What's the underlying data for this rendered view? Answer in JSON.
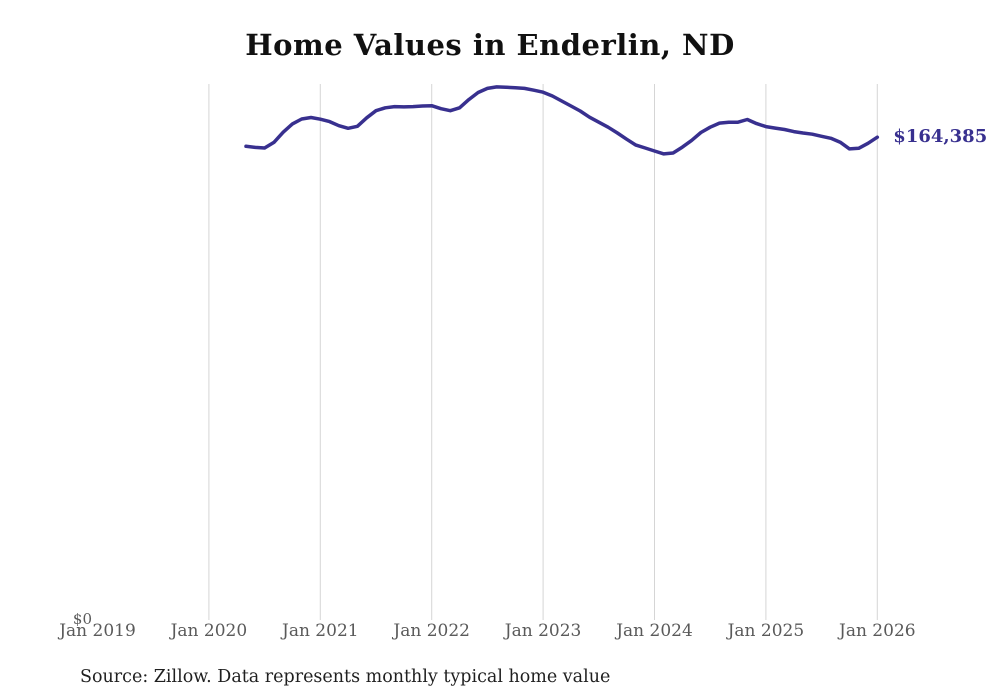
{
  "chart": {
    "title": "Home Values in Enderlin, ND",
    "y_zero_label": "$0",
    "end_label": "$164,385",
    "source": "Source: Zillow. Data represents monthly typical home value",
    "colors": {
      "line": "#38308f",
      "gridline": "#d5d5d5",
      "tick_label": "#5a5a5a",
      "title": "#111111",
      "source_text": "#1f1f1f",
      "background": "#ffffff"
    }
  },
  "chart_data": {
    "type": "line",
    "title": "Home Values in Enderlin, ND",
    "xlabel": "",
    "ylabel": "",
    "ylim": [
      0,
      182500
    ],
    "grid": "vertical-only",
    "legend": "none",
    "annotation_last_value": "$164,385",
    "x_ticks": [
      {
        "label": "Jan 2019",
        "month": "2019-01",
        "gridline": false
      },
      {
        "label": "Jan 2020",
        "month": "2020-01",
        "gridline": true
      },
      {
        "label": "Jan 2021",
        "month": "2021-01",
        "gridline": true
      },
      {
        "label": "Jan 2022",
        "month": "2022-01",
        "gridline": true
      },
      {
        "label": "Jan 2023",
        "month": "2023-01",
        "gridline": true
      },
      {
        "label": "Jan 2024",
        "month": "2024-01",
        "gridline": true
      },
      {
        "label": "Jan 2025",
        "month": "2025-01",
        "gridline": true
      },
      {
        "label": "Jan 2026",
        "month": "2026-01",
        "gridline": true
      }
    ],
    "series": [
      {
        "name": "Monthly typical home value",
        "points": [
          [
            "2020-05",
            161300
          ],
          [
            "2020-06",
            160900
          ],
          [
            "2020-07",
            160700
          ],
          [
            "2020-08",
            162600
          ],
          [
            "2020-09",
            166100
          ],
          [
            "2020-10",
            168900
          ],
          [
            "2020-11",
            170600
          ],
          [
            "2020-12",
            171100
          ],
          [
            "2021-01",
            170500
          ],
          [
            "2021-02",
            169700
          ],
          [
            "2021-03",
            168300
          ],
          [
            "2021-04",
            167400
          ],
          [
            "2021-05",
            168100
          ],
          [
            "2021-06",
            171000
          ],
          [
            "2021-07",
            173400
          ],
          [
            "2021-08",
            174400
          ],
          [
            "2021-09",
            174800
          ],
          [
            "2021-10",
            174700
          ],
          [
            "2021-11",
            174800
          ],
          [
            "2021-12",
            175000
          ],
          [
            "2022-01",
            175100
          ],
          [
            "2022-02",
            174100
          ],
          [
            "2022-03",
            173400
          ],
          [
            "2022-04",
            174400
          ],
          [
            "2022-05",
            177200
          ],
          [
            "2022-06",
            179600
          ],
          [
            "2022-07",
            181000
          ],
          [
            "2022-08",
            181500
          ],
          [
            "2022-09",
            181400
          ],
          [
            "2022-10",
            181200
          ],
          [
            "2022-11",
            181000
          ],
          [
            "2022-12",
            180400
          ],
          [
            "2023-01",
            179700
          ],
          [
            "2023-02",
            178400
          ],
          [
            "2023-03",
            176700
          ],
          [
            "2023-04",
            175000
          ],
          [
            "2023-05",
            173300
          ],
          [
            "2023-06",
            171200
          ],
          [
            "2023-07",
            169500
          ],
          [
            "2023-08",
            167800
          ],
          [
            "2023-09",
            165800
          ],
          [
            "2023-10",
            163700
          ],
          [
            "2023-11",
            161700
          ],
          [
            "2023-12",
            160700
          ],
          [
            "2024-01",
            159700
          ],
          [
            "2024-02",
            158700
          ],
          [
            "2024-03",
            159000
          ],
          [
            "2024-04",
            161000
          ],
          [
            "2024-05",
            163300
          ],
          [
            "2024-06",
            166000
          ],
          [
            "2024-07",
            167800
          ],
          [
            "2024-08",
            169200
          ],
          [
            "2024-09",
            169500
          ],
          [
            "2024-10",
            169500
          ],
          [
            "2024-11",
            170400
          ],
          [
            "2024-12",
            169000
          ],
          [
            "2025-01",
            168000
          ],
          [
            "2025-02",
            167500
          ],
          [
            "2025-03",
            167000
          ],
          [
            "2025-04",
            166300
          ],
          [
            "2025-05",
            165800
          ],
          [
            "2025-06",
            165400
          ],
          [
            "2025-07",
            164700
          ],
          [
            "2025-08",
            164000
          ],
          [
            "2025-09",
            162700
          ],
          [
            "2025-10",
            160400
          ],
          [
            "2025-11",
            160600
          ],
          [
            "2025-12",
            162300
          ],
          [
            "2026-01",
            164385
          ]
        ]
      }
    ]
  }
}
